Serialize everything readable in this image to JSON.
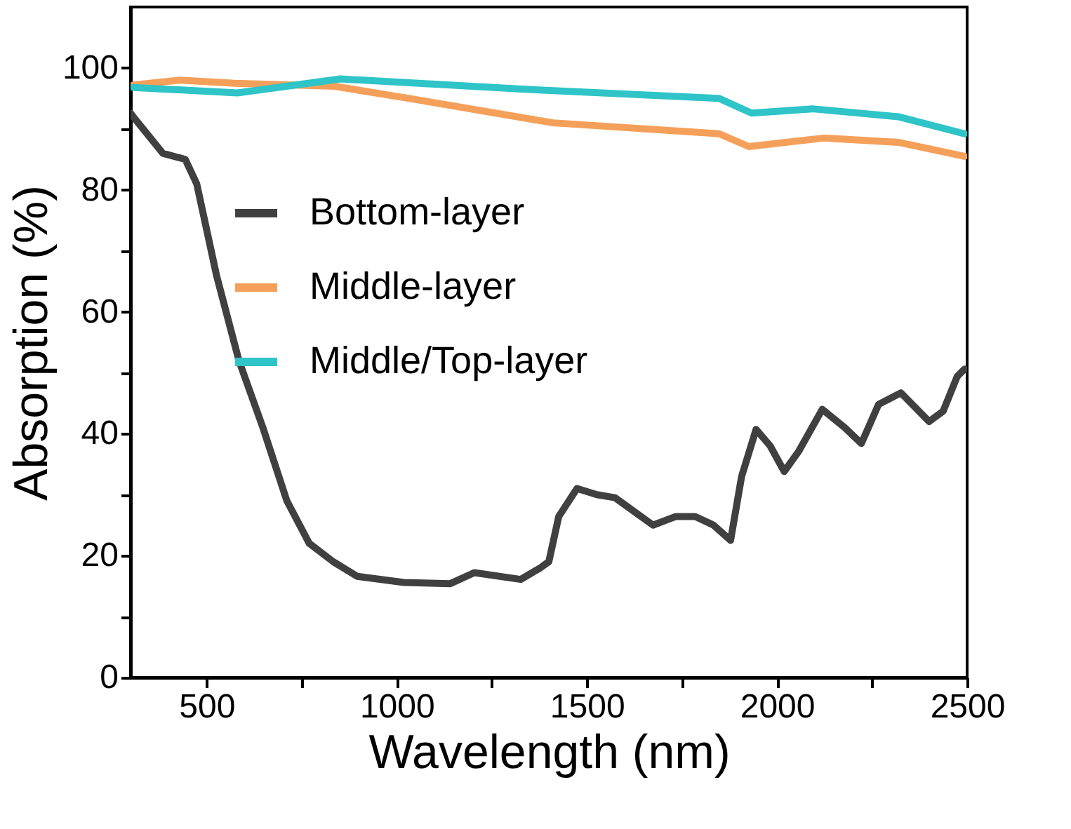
{
  "chart_data": {
    "type": "line",
    "xlabel": "Wavelength (nm)",
    "ylabel": "Absorption (%)",
    "xlim": [
      300,
      2500
    ],
    "ylim": [
      0,
      110
    ],
    "xticks": [
      500,
      {
        "value": 750,
        "label": null
      },
      1000,
      {
        "value": 1250,
        "label": null
      },
      1500,
      {
        "value": 1750,
        "label": null
      },
      2000,
      {
        "value": 2250,
        "label": null
      },
      2500
    ],
    "yticks": [
      0,
      {
        "value": 10,
        "label": null
      },
      20,
      {
        "value": 30,
        "label": null
      },
      40,
      {
        "value": 50,
        "label": null
      },
      60,
      {
        "value": 70,
        "label": null
      },
      80,
      {
        "value": 90,
        "label": null
      },
      100
    ],
    "grid": false,
    "legend": "top",
    "line_style": "solid",
    "marker": "none",
    "series": [
      {
        "name": "Bottom-layer",
        "color": "#404040",
        "x": [
          300,
          307,
          385,
          444,
          474,
          526,
          585,
          648,
          711,
          770,
          833,
          896,
          1019,
          1141,
          1204,
          1326,
          1378,
          1400,
          1426,
          1474,
          1526,
          1574,
          1674,
          1733,
          1785,
          1833,
          1878,
          1907,
          1945,
          1982,
          2019,
          2056,
          2119,
          2178,
          2222,
          2267,
          2326,
          2400,
          2437,
          2474,
          2493
        ],
        "values": [
          92.6,
          92,
          86,
          85,
          81,
          66,
          52,
          41,
          29,
          22,
          19,
          16.6,
          15.6,
          15.4,
          17.2,
          16.1,
          18,
          19,
          26.4,
          31,
          30,
          29.5,
          25,
          26.4,
          26.4,
          25,
          22.5,
          33,
          40.7,
          38,
          33.8,
          37,
          44,
          41,
          38.4,
          44.8,
          46.7,
          42,
          43.7,
          49.4,
          50.6
        ]
      },
      {
        "name": "Middle-layer",
        "color": "#f5a05a",
        "x": [
          307,
          430,
          574,
          837,
          1033,
          1411,
          1848,
          1926,
          2122,
          2319,
          2493
        ],
        "values": [
          97.2,
          98,
          97.5,
          97,
          95,
          91,
          89.2,
          87.1,
          88.5,
          87.8,
          85.5
        ]
      },
      {
        "name": "Middle/Top-layer",
        "color": "#2ec4c8",
        "x": [
          307,
          581,
          852,
          1337,
          1848,
          1933,
          2093,
          2319,
          2493
        ],
        "values": [
          96.8,
          95.9,
          98.2,
          96.5,
          95,
          92.6,
          93.3,
          92,
          89.2
        ]
      }
    ]
  }
}
